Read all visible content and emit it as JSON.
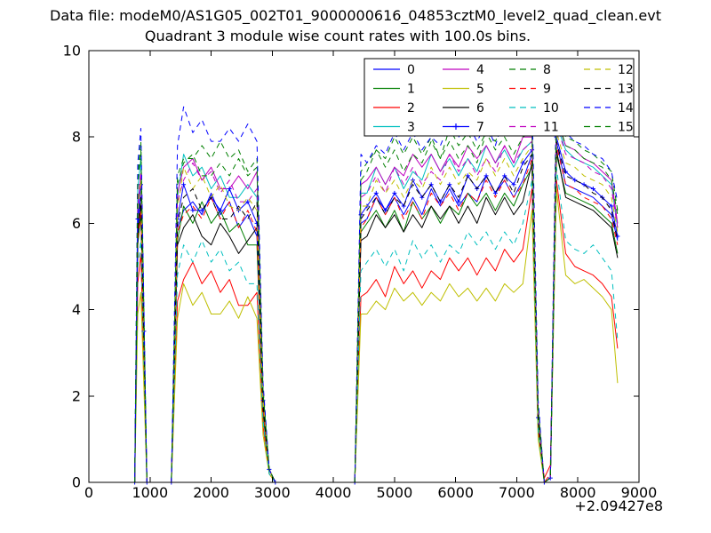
{
  "figure": {
    "data_file_text": "Data file: modeM0/AS1G05_002T01_9000000616_04853cztM0_level2_quad_clean.evt",
    "background_color": "#ffffff",
    "axes_edge_color": "#000000"
  },
  "chart_data": {
    "type": "line",
    "title": "Quadrant 3 module wise count rates with 100.0s bins.",
    "xlabel": "",
    "ylabel": "",
    "xlim": [
      0,
      9000
    ],
    "ylim": [
      0,
      10
    ],
    "xticks": [
      0,
      1000,
      2000,
      3000,
      4000,
      5000,
      6000,
      7000,
      8000,
      9000
    ],
    "yticks": [
      0,
      2,
      4,
      6,
      8,
      10
    ],
    "x_offset_text": "+2.09427e8",
    "grid": false,
    "legend": {
      "position": "upper right",
      "columns": 4,
      "rows": 4,
      "order": "column-major"
    },
    "x": [
      750,
      800,
      850,
      900,
      950,
      1350,
      1450,
      1550,
      1700,
      1850,
      2000,
      2150,
      2300,
      2450,
      2600,
      2750,
      2850,
      2950,
      3050,
      4350,
      4450,
      4550,
      4700,
      4850,
      5000,
      5150,
      5300,
      5450,
      5600,
      5750,
      5900,
      6050,
      6200,
      6350,
      6500,
      6650,
      6800,
      6950,
      7100,
      7250,
      7350,
      7450,
      7550,
      7650,
      7800,
      7950,
      8100,
      8250,
      8400,
      8550,
      8650
    ],
    "series": [
      {
        "name": "0",
        "color": "#0000ff",
        "style": "solid",
        "marker": null,
        "values": [
          0,
          5.9,
          6.6,
          3.3,
          0,
          0,
          5.9,
          6.3,
          6.5,
          6.2,
          6.7,
          6.2,
          6.5,
          5.9,
          6.2,
          5.7,
          1.8,
          0.3,
          0,
          0,
          6.0,
          6.1,
          6.6,
          6.3,
          6.6,
          6.2,
          6.6,
          6.2,
          6.8,
          6.4,
          6.8,
          6.4,
          6.7,
          6.5,
          7.1,
          6.7,
          7.0,
          6.6,
          7.0,
          7.6,
          1.5,
          0,
          0.1,
          7.9,
          6.9,
          6.8,
          6.7,
          6.6,
          6.4,
          6.2,
          5.6
        ]
      },
      {
        "name": "1",
        "color": "#007f00",
        "style": "solid",
        "marker": null,
        "values": [
          0,
          5.5,
          6.2,
          3.1,
          0,
          0,
          5.6,
          6.4,
          6.0,
          6.5,
          6.0,
          6.3,
          5.8,
          6.0,
          5.5,
          5.5,
          1.6,
          0.2,
          0,
          0,
          5.8,
          6.0,
          6.3,
          5.9,
          6.3,
          5.8,
          6.5,
          6.1,
          6.4,
          6.0,
          6.4,
          6.2,
          6.7,
          6.4,
          6.7,
          6.3,
          6.7,
          6.4,
          6.9,
          7.3,
          1.4,
          0,
          0.1,
          7.6,
          6.7,
          6.6,
          6.5,
          6.4,
          6.2,
          6.0,
          5.3
        ]
      },
      {
        "name": "2",
        "color": "#ff0000",
        "style": "solid",
        "marker": null,
        "values": [
          0,
          4.6,
          5.3,
          2.6,
          0,
          0,
          4.2,
          4.7,
          5.1,
          4.6,
          4.9,
          4.4,
          4.7,
          4.1,
          4.1,
          4.4,
          1.3,
          0.2,
          0,
          0,
          4.3,
          4.4,
          4.7,
          4.3,
          5.0,
          4.6,
          4.9,
          4.5,
          4.9,
          4.7,
          5.2,
          4.9,
          5.2,
          4.8,
          5.2,
          4.9,
          5.4,
          5.1,
          5.4,
          6.8,
          1.2,
          0.1,
          0.4,
          7.0,
          5.3,
          5.0,
          4.9,
          4.8,
          4.6,
          4.3,
          3.1
        ]
      },
      {
        "name": "3",
        "color": "#00bfbf",
        "style": "solid",
        "marker": null,
        "values": [
          0,
          6.8,
          7.5,
          3.8,
          0,
          0,
          6.6,
          7.6,
          7.1,
          7.3,
          6.8,
          7.1,
          6.6,
          6.6,
          6.9,
          6.6,
          2.0,
          0.3,
          0,
          0,
          6.7,
          6.7,
          7.3,
          6.9,
          7.3,
          6.8,
          7.2,
          7.0,
          7.6,
          7.2,
          7.5,
          7.1,
          7.5,
          7.2,
          7.8,
          7.4,
          7.7,
          7.3,
          7.7,
          7.9,
          1.6,
          0,
          0.1,
          8.3,
          7.7,
          7.5,
          7.4,
          7.3,
          7.1,
          6.9,
          5.9
        ]
      },
      {
        "name": "4",
        "color": "#bf00bf",
        "style": "solid",
        "marker": null,
        "values": [
          0,
          6.4,
          7.1,
          3.6,
          0,
          0,
          6.7,
          7.3,
          7.5,
          7.0,
          7.3,
          6.8,
          6.8,
          7.1,
          6.8,
          7.2,
          2.0,
          0.3,
          0,
          0,
          6.9,
          7.0,
          7.3,
          6.9,
          7.3,
          7.1,
          7.6,
          7.3,
          7.6,
          7.2,
          7.6,
          7.3,
          7.8,
          7.5,
          7.8,
          7.4,
          7.8,
          7.4,
          8.0,
          8.0,
          1.7,
          0,
          0.1,
          8.4,
          7.8,
          7.7,
          7.5,
          7.4,
          7.2,
          7.0,
          6.0
        ]
      },
      {
        "name": "5",
        "color": "#bfbf00",
        "style": "solid",
        "marker": null,
        "values": [
          0,
          3.9,
          4.4,
          2.2,
          0,
          0,
          3.8,
          4.6,
          4.1,
          4.4,
          3.9,
          3.9,
          4.2,
          3.8,
          4.3,
          3.8,
          1.1,
          0.2,
          0,
          0,
          3.9,
          3.9,
          4.2,
          4.0,
          4.5,
          4.2,
          4.4,
          4.1,
          4.4,
          4.2,
          4.6,
          4.3,
          4.5,
          4.2,
          4.5,
          4.2,
          4.6,
          4.4,
          4.6,
          6.3,
          1.0,
          0,
          0.1,
          6.8,
          4.8,
          4.6,
          4.7,
          4.5,
          4.3,
          4.0,
          2.3
        ]
      },
      {
        "name": "6",
        "color": "#000000",
        "style": "solid",
        "marker": null,
        "values": [
          0,
          5.7,
          6.4,
          3.2,
          0,
          0,
          5.5,
          5.9,
          6.2,
          5.7,
          5.5,
          6.0,
          5.7,
          5.3,
          5.6,
          5.9,
          1.7,
          0.3,
          0,
          0,
          5.6,
          5.7,
          6.2,
          5.9,
          6.2,
          5.8,
          6.2,
          5.9,
          6.4,
          6.1,
          6.4,
          6.0,
          6.4,
          6.0,
          6.6,
          6.2,
          6.6,
          6.2,
          6.5,
          7.4,
          1.4,
          0,
          0.1,
          7.7,
          6.6,
          6.5,
          6.4,
          6.3,
          6.1,
          5.9,
          5.2
        ]
      },
      {
        "name": "7",
        "color": "#0000ff",
        "style": "solid",
        "marker": "+",
        "values": [
          0,
          6.1,
          6.9,
          3.5,
          0,
          0,
          6.1,
          6.9,
          6.3,
          6.3,
          6.6,
          6.3,
          6.8,
          6.3,
          6.5,
          6.0,
          1.9,
          0.3,
          0,
          0,
          6.2,
          6.4,
          6.7,
          6.3,
          6.7,
          6.4,
          7.0,
          6.6,
          6.9,
          6.5,
          6.9,
          6.5,
          7.1,
          6.8,
          7.1,
          6.7,
          7.1,
          6.9,
          7.4,
          7.7,
          1.5,
          0,
          0.1,
          8.0,
          7.2,
          7.0,
          6.9,
          6.8,
          6.6,
          6.4,
          5.7
        ]
      },
      {
        "name": "8",
        "color": "#007f00",
        "style": "dashed",
        "marker": null,
        "values": [
          0,
          7.1,
          7.9,
          4.0,
          0,
          0,
          7.1,
          7.5,
          7.5,
          7.8,
          7.5,
          7.9,
          7.5,
          7.7,
          7.2,
          7.5,
          2.2,
          0.3,
          0,
          0,
          7.2,
          7.4,
          7.7,
          7.5,
          8.0,
          7.6,
          8.0,
          7.6,
          8.0,
          7.5,
          8.2,
          7.8,
          8.1,
          7.7,
          8.1,
          7.9,
          8.4,
          8.1,
          8.4,
          8.2,
          1.8,
          0,
          0.1,
          8.6,
          8.0,
          7.9,
          7.7,
          7.6,
          7.4,
          7.2,
          6.3
        ]
      },
      {
        "name": "9",
        "color": "#ff0000",
        "style": "dashed",
        "marker": null,
        "values": [
          0,
          5.6,
          6.3,
          3.1,
          0,
          0,
          5.8,
          6.2,
          6.4,
          6.1,
          6.6,
          6.1,
          6.5,
          5.9,
          6.3,
          5.8,
          1.7,
          0.3,
          0,
          0,
          5.9,
          6.1,
          6.6,
          6.2,
          6.6,
          6.1,
          6.5,
          6.1,
          6.7,
          6.4,
          6.7,
          6.3,
          6.7,
          6.5,
          7.0,
          6.6,
          7.0,
          6.6,
          6.9,
          7.5,
          1.5,
          0,
          0.2,
          7.8,
          6.9,
          6.8,
          6.6,
          6.5,
          6.4,
          6.1,
          5.5
        ]
      },
      {
        "name": "10",
        "color": "#00bfbf",
        "style": "dashed",
        "marker": null,
        "values": [
          0,
          5.0,
          5.6,
          2.8,
          0,
          0,
          4.8,
          5.5,
          5.1,
          5.6,
          5.1,
          5.4,
          4.9,
          5.1,
          4.6,
          4.6,
          1.4,
          0.2,
          0,
          0,
          4.9,
          5.1,
          5.4,
          5.0,
          5.4,
          4.9,
          5.6,
          5.2,
          5.5,
          5.1,
          5.5,
          5.3,
          5.8,
          5.5,
          5.8,
          5.4,
          5.8,
          5.5,
          6.0,
          7.0,
          1.2,
          0,
          0.1,
          7.3,
          5.6,
          5.4,
          5.3,
          5.5,
          5.2,
          4.9,
          3.3
        ]
      },
      {
        "name": "11",
        "color": "#bf00bf",
        "style": "dashed",
        "marker": null,
        "values": [
          0,
          6.5,
          7.2,
          3.6,
          0,
          0,
          6.5,
          7.0,
          7.4,
          7.0,
          7.2,
          6.7,
          7.0,
          6.5,
          6.5,
          6.8,
          2.0,
          0.3,
          0,
          0,
          6.6,
          6.7,
          7.1,
          6.7,
          7.3,
          6.9,
          7.3,
          6.9,
          7.2,
          7.0,
          7.6,
          7.2,
          7.5,
          7.1,
          7.5,
          7.2,
          7.8,
          7.4,
          7.7,
          7.9,
          1.6,
          0,
          0.1,
          8.3,
          7.6,
          7.5,
          7.4,
          7.2,
          7.1,
          6.8,
          5.9
        ]
      },
      {
        "name": "12",
        "color": "#bfbf00",
        "style": "dashed",
        "marker": null,
        "values": [
          0,
          6.3,
          7.0,
          3.5,
          0,
          0,
          6.3,
          7.3,
          6.8,
          7.1,
          6.6,
          6.9,
          6.4,
          6.3,
          6.6,
          6.3,
          1.9,
          0.3,
          0,
          0,
          6.4,
          6.4,
          7.0,
          6.7,
          7.0,
          6.6,
          7.0,
          6.8,
          7.3,
          6.9,
          7.3,
          6.9,
          7.2,
          7.0,
          7.5,
          7.1,
          7.5,
          7.1,
          7.5,
          7.8,
          1.5,
          0,
          0.1,
          8.1,
          7.4,
          7.3,
          7.1,
          7.0,
          6.9,
          6.6,
          5.8
        ]
      },
      {
        "name": "13",
        "color": "#000000",
        "style": "dashed",
        "marker": null,
        "values": [
          0,
          5.9,
          6.6,
          3.3,
          0,
          0,
          6.0,
          6.6,
          6.8,
          6.3,
          6.6,
          6.1,
          6.1,
          6.4,
          6.1,
          6.5,
          1.8,
          0.3,
          0,
          0,
          6.1,
          6.3,
          6.6,
          6.2,
          6.6,
          6.4,
          6.9,
          6.6,
          6.9,
          6.5,
          6.9,
          6.6,
          7.1,
          6.8,
          7.1,
          6.7,
          7.1,
          6.7,
          7.3,
          7.6,
          1.5,
          0,
          0.1,
          7.9,
          7.1,
          7.0,
          6.9,
          6.7,
          6.6,
          6.3,
          5.6
        ]
      },
      {
        "name": "14",
        "color": "#0000ff",
        "style": "dashed",
        "marker": null,
        "values": [
          0,
          7.4,
          8.2,
          4.1,
          0,
          0,
          7.8,
          8.7,
          8.1,
          8.4,
          7.9,
          7.9,
          8.2,
          7.9,
          8.3,
          7.9,
          2.3,
          0.3,
          0,
          0,
          7.6,
          7.4,
          7.8,
          7.6,
          8.1,
          7.7,
          8.1,
          7.7,
          8.0,
          7.8,
          8.3,
          8.0,
          8.3,
          7.9,
          8.3,
          7.8,
          8.5,
          8.1,
          8.4,
          8.9,
          1.9,
          0,
          0.1,
          9.2,
          8.1,
          7.9,
          7.8,
          7.6,
          7.5,
          7.2,
          6.5
        ]
      },
      {
        "name": "15",
        "color": "#007f00",
        "style": "dashed",
        "marker": null,
        "values": [
          0,
          6.9,
          7.7,
          3.9,
          0,
          0,
          6.9,
          7.4,
          7.6,
          7.1,
          7.1,
          7.4,
          7.1,
          7.5,
          7.1,
          7.3,
          2.1,
          0.3,
          0,
          0,
          7.0,
          7.2,
          7.7,
          7.3,
          7.7,
          7.2,
          7.6,
          7.4,
          7.9,
          7.5,
          7.9,
          7.5,
          7.8,
          7.4,
          8.1,
          7.7,
          8.0,
          7.6,
          8.0,
          8.1,
          1.7,
          0,
          0.1,
          8.5,
          7.8,
          7.7,
          7.5,
          7.4,
          7.3,
          7.0,
          6.2
        ]
      }
    ]
  }
}
